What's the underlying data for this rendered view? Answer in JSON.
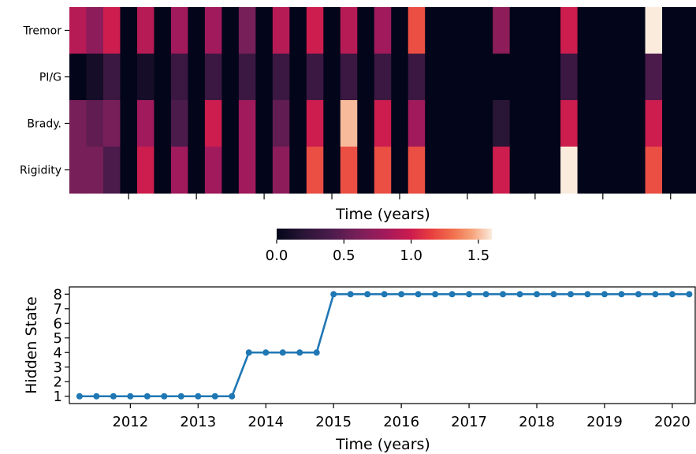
{
  "chart_data": [
    {
      "type": "heatmap",
      "row_labels": [
        "Tremor",
        "PI/G",
        "Brady.",
        "Rigidity"
      ],
      "xlabel": "Time (years)",
      "colormap": "rocket",
      "colorbar": {
        "min": 0.0,
        "max": 1.6,
        "tick_values": [
          0.0,
          0.5,
          1.0,
          1.5
        ],
        "tick_labels": [
          "0.0",
          "0.5",
          "1.0",
          "1.5"
        ]
      },
      "num_columns": 37,
      "values": [
        [
          0.9,
          0.7,
          1.0,
          0,
          0.9,
          0,
          0.8,
          0,
          0.8,
          0,
          0.6,
          0,
          0.9,
          0,
          1.0,
          0,
          0.9,
          0,
          0.8,
          0,
          1.2,
          0,
          0,
          0,
          0,
          0.7,
          0,
          0,
          0,
          1.0,
          0,
          0,
          0,
          0,
          1.6,
          0,
          0
        ],
        [
          0,
          0.1,
          0.3,
          0,
          0.1,
          0,
          0.3,
          0,
          0.3,
          0,
          0.3,
          0,
          0.3,
          0,
          0.3,
          0,
          0.3,
          0,
          0.3,
          0,
          0.3,
          0,
          0,
          0,
          0,
          0,
          0,
          0,
          0,
          0.3,
          0,
          0,
          0,
          0,
          0.4,
          0,
          0
        ],
        [
          0.6,
          0.5,
          0.6,
          0,
          0.8,
          0,
          0.4,
          0,
          1.0,
          0,
          0.8,
          0,
          0.5,
          0,
          1.0,
          0,
          1.5,
          0,
          1.0,
          0,
          0.8,
          0,
          0,
          0,
          0,
          0.2,
          0,
          0,
          0,
          1.0,
          0,
          0,
          0,
          0,
          1.0,
          0,
          0
        ],
        [
          0.6,
          0.6,
          0.4,
          0,
          1.0,
          0,
          0.8,
          0,
          0.8,
          0,
          0.8,
          0,
          0.7,
          0,
          1.2,
          0,
          1.2,
          0,
          1.2,
          0,
          1.2,
          0,
          0,
          0,
          0,
          1.0,
          0,
          0,
          0,
          1.6,
          0,
          0,
          0,
          0,
          1.2,
          0,
          0
        ]
      ]
    },
    {
      "type": "line",
      "xlabel": "Time (years)",
      "ylabel": "Hidden State",
      "xlim": [
        2011.1,
        2020.35
      ],
      "ylim": [
        0.5,
        8.5
      ],
      "xticks": [
        "2012",
        "2013",
        "2014",
        "2015",
        "2016",
        "2017",
        "2018",
        "2019",
        "2020"
      ],
      "yticks": [
        "1",
        "2",
        "3",
        "4",
        "5",
        "6",
        "7",
        "8"
      ],
      "series": [
        {
          "color": "#1f77b4",
          "x": [
            2011.25,
            2011.5,
            2011.75,
            2012.0,
            2012.25,
            2012.5,
            2012.75,
            2013.0,
            2013.25,
            2013.5,
            2013.75,
            2014.0,
            2014.25,
            2014.5,
            2014.75,
            2015.0,
            2015.25,
            2015.5,
            2015.75,
            2016.0,
            2016.25,
            2016.5,
            2016.75,
            2017.0,
            2017.25,
            2017.5,
            2017.75,
            2018.0,
            2018.25,
            2018.5,
            2018.75,
            2019.0,
            2019.25,
            2019.5,
            2019.75,
            2020.0,
            2020.25
          ],
          "y": [
            1,
            1,
            1,
            1,
            1,
            1,
            1,
            1,
            1,
            1,
            4,
            4,
            4,
            4,
            4,
            8,
            8,
            8,
            8,
            8,
            8,
            8,
            8,
            8,
            8,
            8,
            8,
            8,
            8,
            8,
            8,
            8,
            8,
            8,
            8,
            8,
            8
          ]
        }
      ]
    }
  ]
}
